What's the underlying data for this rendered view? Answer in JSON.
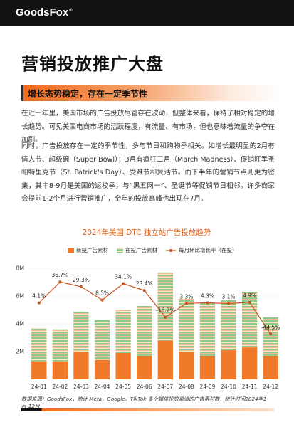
{
  "header": {
    "logo": "GoodsFox",
    "logo_mark": "®"
  },
  "title": "营销投放推广大盘",
  "section": {
    "heading": "增长态势稳定，存在一定季节性"
  },
  "paragraphs": [
    "在近一年里，美国市场的广告投放尽管存在波动，但整体来看，保持了相对稳定的增长趋势。可见美国电商市场的活跃程度，有流量、有市场，但也意味着流量的争夺在加剧。",
    "同时，广告投放存在一定的季节性，多与节日和购物季相关。如增长最明显的2月有情人节、超级碗（Super Bowl）；3月有疯狂三月（March Madness）、促销旺季圣帕特里克节（St. Patrick's Day）、受难节和复活节。而下半年的营销节点则更为密集，其中8-9月是美国的返校季，与“黑五网一”、圣诞节等促销节日相邻。许多商家会提前1-2个月进行营销推广，全年的投放高峰也出现在7月。"
  ],
  "chart_data": {
    "type": "bar",
    "stacked": true,
    "title": "2024年美国 DTC 独立站广告投放趋势",
    "categories": [
      "24-01",
      "24-02",
      "24-03",
      "24-04",
      "24-05",
      "24-06",
      "24-07",
      "24-08",
      "24-09",
      "24-10",
      "24-11",
      "24-12"
    ],
    "series": [
      {
        "name": "新投广告素材",
        "color": "#f07a2a",
        "values": [
          1.3,
          1.3,
          2.0,
          1.4,
          1.9,
          1.7,
          2.8,
          2.0,
          1.7,
          2.1,
          2.3,
          1.7
        ]
      },
      {
        "name": "在投广告素材",
        "colors": [
          "#8ec98b",
          "#f6b884"
        ],
        "values": [
          2.4,
          2.3,
          2.9,
          2.9,
          3.1,
          3.6,
          4.9,
          3.8,
          3.8,
          3.6,
          4.0,
          2.8
        ]
      },
      {
        "name": "每月环比增长率（在投）",
        "type": "line",
        "axis": "y2",
        "color": "#c9521c",
        "values": [
          4.1,
          36.7,
          29.3,
          8.5,
          34.1,
          23.4,
          -18.2,
          3.3,
          4.3,
          3.1,
          4.9,
          -44.5
        ],
        "value_labels": [
          "4.1%",
          "36.7%",
          "29.3%",
          "8.5%",
          "34.1%",
          "23.4%",
          "-18.2%",
          "3.3%",
          "4.3%",
          "3.1%",
          "4.9%",
          "-44.5%"
        ]
      }
    ],
    "ylim": [
      0,
      8
    ],
    "yticks": [
      {
        "value": 2,
        "label": "2M"
      },
      {
        "value": 4,
        "label": "4M"
      },
      {
        "value": 6,
        "label": "6M"
      },
      {
        "value": 8,
        "label": "8M"
      }
    ],
    "y2lim": [
      -115,
      58
    ],
    "legend": "top"
  },
  "source": "数据来源：GoodsFox，统计 Meta、Google、TikTok 多个媒体投放渠道的广告素材数，统计时间2024年1月-12月"
}
